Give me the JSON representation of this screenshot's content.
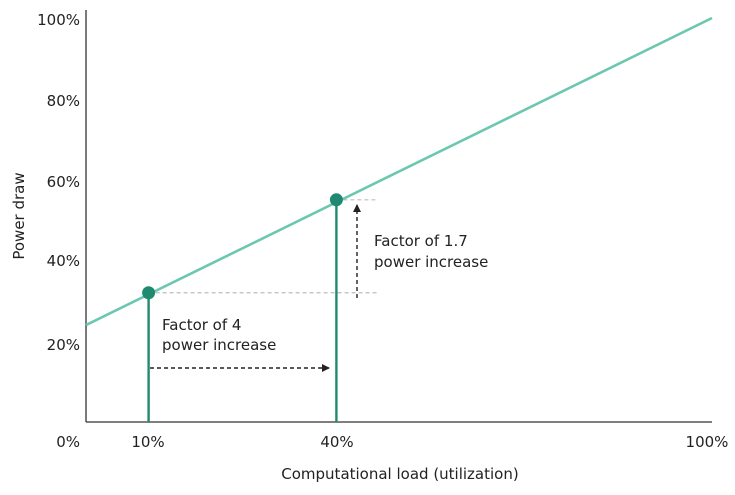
{
  "chart_data": {
    "type": "line",
    "xlabel": "Computational load (utilization)",
    "ylabel": "Power draw",
    "xlim": [
      0,
      100
    ],
    "ylim": [
      0,
      100
    ],
    "x_unit": "%",
    "y_unit": "%",
    "y_ticks": [
      "0%",
      "20%",
      "40%",
      "60%",
      "80%",
      "100%"
    ],
    "y_tick_values": [
      0,
      20,
      40,
      60,
      80,
      100
    ],
    "x_ticks": [
      "10%",
      "40%",
      "100%"
    ],
    "x_tick_values": [
      10,
      40,
      100
    ],
    "series": [
      {
        "x": [
          0,
          100
        ],
        "y": [
          24,
          100
        ],
        "color": "#6cc7b0"
      }
    ],
    "highlight_points": [
      {
        "x": 10,
        "y": 32
      },
      {
        "x": 40,
        "y": 55
      }
    ],
    "annotations": [
      {
        "line1": "Factor of 4",
        "line2": "power increase"
      },
      {
        "line1": "Factor of 1.7",
        "line2": "power increase"
      }
    ],
    "colors": {
      "line": "#6cc7b0",
      "marker": "#1f8a70",
      "axis": "#333333",
      "guide": "#bdbdbd",
      "arrow": "#222222"
    },
    "grid": false,
    "legend": "none"
  }
}
